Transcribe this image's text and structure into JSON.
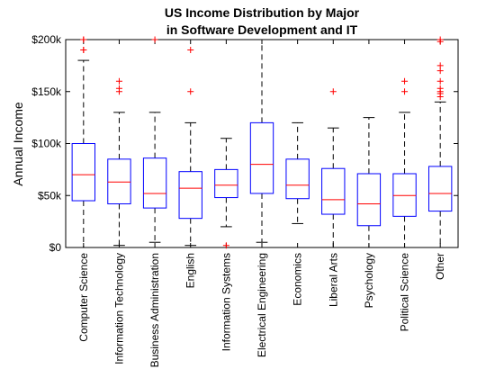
{
  "chart_data": {
    "type": "box",
    "title_lines": [
      "US Income Distribution by Major",
      "in Software Development and IT"
    ],
    "ylabel": "Annual Income",
    "xlabel": "",
    "ylim": [
      0,
      200000
    ],
    "yticks": [
      0,
      50000,
      100000,
      150000,
      200000
    ],
    "ytick_labels": [
      "$0",
      "$50k",
      "$100k",
      "$150k",
      "$200k"
    ],
    "grid": false,
    "colors": {
      "box": "#0000ff",
      "median": "#ff0000",
      "whisker": "#000000",
      "outlier": "#ff0000"
    },
    "categories": [
      "Computer Science",
      "Information Technology",
      "Business Administration",
      "English",
      "Information Systems",
      "Electrical Engineering",
      "Economics",
      "Liberal Arts",
      "Psychology",
      "Political Science",
      "Other"
    ],
    "boxes": [
      {
        "whisker_low": 0,
        "q1": 45000,
        "median": 70000,
        "q3": 100000,
        "whisker_high": 180000,
        "outliers": [
          190000,
          200000,
          200000,
          190000
        ]
      },
      {
        "whisker_low": 2000,
        "q1": 42000,
        "median": 63000,
        "q3": 85000,
        "whisker_high": 130000,
        "outliers": [
          150000,
          153000,
          160000
        ]
      },
      {
        "whisker_low": 5000,
        "q1": 38000,
        "median": 52000,
        "q3": 86000,
        "whisker_high": 130000,
        "outliers": [
          200000
        ]
      },
      {
        "whisker_low": 2000,
        "q1": 28000,
        "median": 57000,
        "q3": 73000,
        "whisker_high": 120000,
        "outliers": [
          150000,
          190000
        ]
      },
      {
        "whisker_low": 20000,
        "q1": 48000,
        "median": 60000,
        "q3": 75000,
        "whisker_high": 105000,
        "outliers": [
          2000
        ]
      },
      {
        "whisker_low": 5000,
        "q1": 52000,
        "median": 80000,
        "q3": 120000,
        "whisker_high": 200000,
        "outliers": []
      },
      {
        "whisker_low": 23000,
        "q1": 47000,
        "median": 60000,
        "q3": 85000,
        "whisker_high": 120000,
        "outliers": []
      },
      {
        "whisker_low": 0,
        "q1": 32000,
        "median": 46000,
        "q3": 76000,
        "whisker_high": 115000,
        "outliers": [
          150000
        ]
      },
      {
        "whisker_low": 0,
        "q1": 21000,
        "median": 42000,
        "q3": 71000,
        "whisker_high": 125000,
        "outliers": []
      },
      {
        "whisker_low": 0,
        "q1": 30000,
        "median": 50000,
        "q3": 71000,
        "whisker_high": 130000,
        "outliers": [
          150000,
          160000
        ]
      },
      {
        "whisker_low": 0,
        "q1": 35000,
        "median": 52000,
        "q3": 78000,
        "whisker_high": 140000,
        "outliers": [
          145000,
          148000,
          150000,
          153000,
          160000,
          170000,
          175000,
          198000,
          200000
        ]
      }
    ]
  }
}
